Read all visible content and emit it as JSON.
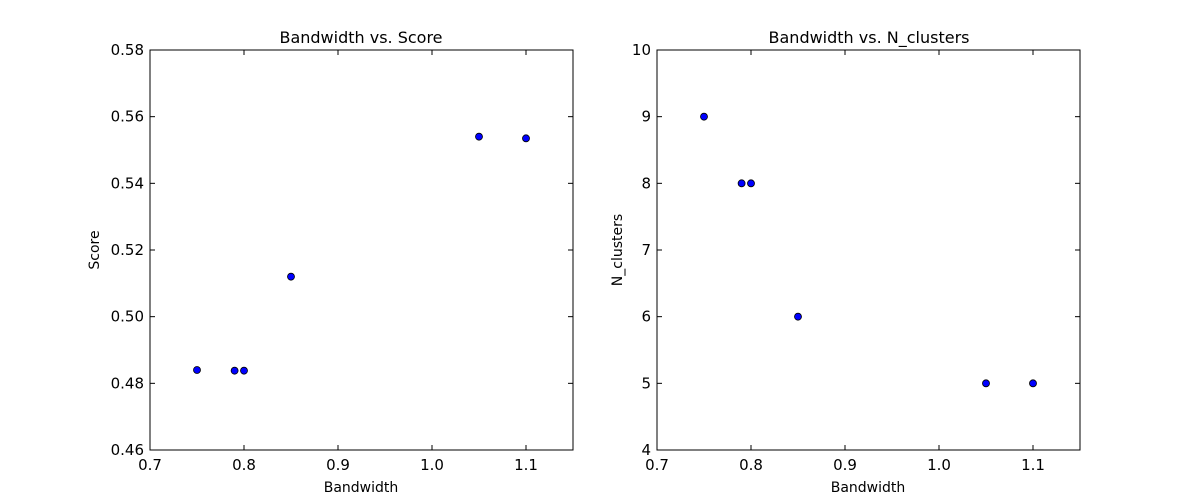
{
  "chart_data": [
    {
      "type": "scatter",
      "title": "Bandwidth vs. Score",
      "xlabel": "Bandwidth",
      "ylabel": "Score",
      "xlim": [
        0.7,
        1.15
      ],
      "ylim": [
        0.46,
        0.58
      ],
      "xticks": [
        "0.7",
        "0.8",
        "0.9",
        "1.0",
        "1.1"
      ],
      "xtick_values": [
        0.7,
        0.8,
        0.9,
        1.0,
        1.1
      ],
      "yticks": [
        "0.46",
        "0.48",
        "0.50",
        "0.52",
        "0.54",
        "0.56",
        "0.58"
      ],
      "ytick_values": [
        0.46,
        0.48,
        0.5,
        0.52,
        0.54,
        0.56,
        0.58
      ],
      "grid": false,
      "marker_color": "#0000ff",
      "points": [
        {
          "x": 0.75,
          "y": 0.484
        },
        {
          "x": 0.79,
          "y": 0.4838
        },
        {
          "x": 0.8,
          "y": 0.4838
        },
        {
          "x": 0.85,
          "y": 0.512
        },
        {
          "x": 1.05,
          "y": 0.554
        },
        {
          "x": 1.1,
          "y": 0.5535
        }
      ]
    },
    {
      "type": "scatter",
      "title": "Bandwidth vs. N_clusters",
      "xlabel": "Bandwidth",
      "ylabel": "N_clusters",
      "xlim": [
        0.7,
        1.15
      ],
      "ylim": [
        4,
        10
      ],
      "xticks": [
        "0.7",
        "0.8",
        "0.9",
        "1.0",
        "1.1"
      ],
      "xtick_values": [
        0.7,
        0.8,
        0.9,
        1.0,
        1.1
      ],
      "yticks": [
        "4",
        "5",
        "6",
        "7",
        "8",
        "9",
        "10"
      ],
      "ytick_values": [
        4,
        5,
        6,
        7,
        8,
        9,
        10
      ],
      "grid": false,
      "marker_color": "#0000ff",
      "points": [
        {
          "x": 0.75,
          "y": 9
        },
        {
          "x": 0.79,
          "y": 8
        },
        {
          "x": 0.8,
          "y": 8
        },
        {
          "x": 0.85,
          "y": 6
        },
        {
          "x": 1.05,
          "y": 5
        },
        {
          "x": 1.1,
          "y": 5
        }
      ]
    }
  ]
}
